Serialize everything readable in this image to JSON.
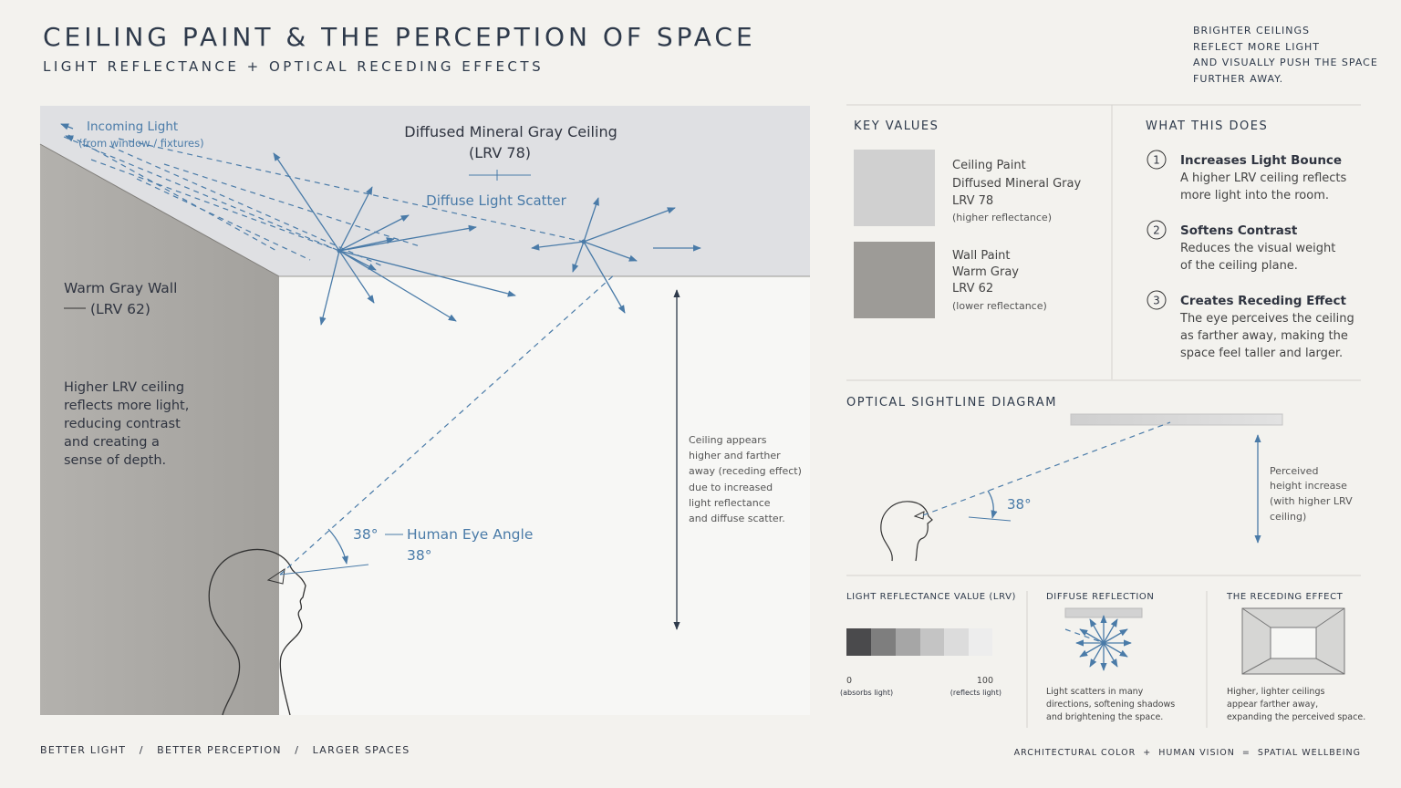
{
  "header": {
    "title": "CEILING PAINT & THE PERCEPTION OF SPACE",
    "subtitle": "LIGHT REFLECTANCE  +  OPTICAL RECEDING EFFECTS"
  },
  "note": [
    "BRIGHTER CEILINGS",
    "REFLECT MORE LIGHT",
    "AND VISUALLY PUSH THE SPACE",
    "FURTHER AWAY."
  ],
  "illustration": {
    "incoming_light": "Incoming Light",
    "incoming_light_source": "(from window / fixtures)",
    "ceiling_title": "Diffused Mineral Gray Ceiling",
    "ceiling_lrv": "(LRV 78)",
    "scatter_label": "Diffuse Light Scatter",
    "wall_title": "Warm Gray Wall",
    "wall_lrv": "(LRV 62)",
    "wall_note": [
      "Higher LRV ceiling",
      "reflects more light,",
      "reducing contrast",
      "and creating a",
      "sense of depth."
    ],
    "eye_angle": "38°",
    "eye_label": "Human Eye Angle",
    "eye_label_angle": "38°",
    "receding_note": [
      "Ceiling appears",
      "higher and farther",
      "away (receding effect)",
      "due to increased",
      "light reflectance",
      "and diffuse scatter."
    ]
  },
  "key_values": {
    "heading": "KEY VALUES",
    "items": [
      {
        "lines": [
          "Ceiling Paint",
          "Diffused Mineral Gray",
          "LRV 78"
        ],
        "note": "(higher reflectance)"
      },
      {
        "lines": [
          "Wall Paint",
          "Warm Gray",
          "LRV 62"
        ],
        "note": "(lower reflectance)"
      }
    ]
  },
  "what_this_does": {
    "heading": "WHAT THIS DOES",
    "items": [
      {
        "number": "1",
        "title": "Increases Light Bounce",
        "text": [
          "A higher LRV ceiling reflects",
          "more light into the room."
        ]
      },
      {
        "number": "2",
        "title": "Softens Contrast",
        "text": [
          "Reduces the visual weight",
          "of the ceiling plane."
        ]
      },
      {
        "number": "3",
        "title": "Creates Receding Effect",
        "text": [
          "The eye perceives the ceiling",
          "as farther away, making the",
          "space feel taller and larger."
        ]
      }
    ]
  },
  "sightline": {
    "heading": "OPTICAL SIGHTLINE DIAGRAM",
    "angle": "38°",
    "note": [
      "Perceived",
      "height increase",
      "(with higher LRV",
      "ceiling)"
    ]
  },
  "lrv_scale": {
    "heading": "LIGHT REFLECTANCE VALUE (LRV)",
    "min": "0",
    "min_note": "(absorbs light)",
    "max": "100",
    "max_note": "(reflects light)"
  },
  "diffuse_reflection": {
    "heading": "DIFFUSE REFLECTION",
    "text": [
      "Light scatters in many",
      "directions, softening shadows",
      "and brightening the space."
    ]
  },
  "receding_effect": {
    "heading": "THE RECEDING EFFECT",
    "text": [
      "Higher, lighter ceilings",
      "appear farther away,",
      "expanding the perceived space."
    ]
  },
  "footer": {
    "left": "BETTER LIGHT   /   BETTER PERCEPTION   /   LARGER SPACES",
    "right": "ARCHITECTURAL COLOR  +  HUMAN VISION  =  SPATIAL WELLBEING"
  }
}
